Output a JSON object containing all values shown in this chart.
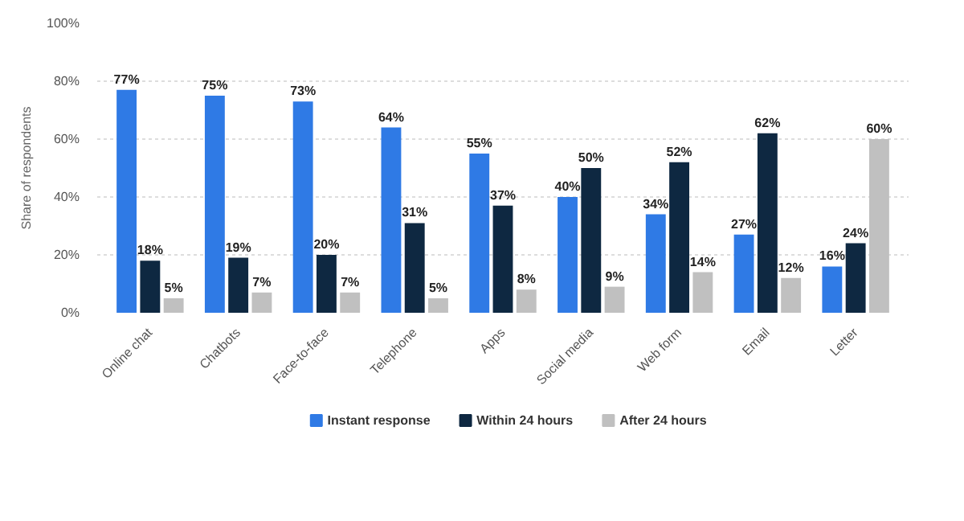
{
  "chart_data": {
    "type": "bar",
    "categories": [
      "Online chat",
      "Chatbots",
      "Face-to-face",
      "Telephone",
      "Apps",
      "Social media",
      "Web form",
      "Email",
      "Letter"
    ],
    "ylabel": "Share of respondents",
    "ylim": [
      0,
      100
    ],
    "yticks": [
      {
        "value": 0,
        "label": "0%"
      },
      {
        "value": 20,
        "label": "20%"
      },
      {
        "value": 40,
        "label": "40%"
      },
      {
        "value": 60,
        "label": "60%"
      },
      {
        "value": 80,
        "label": "80%"
      },
      {
        "value": 100,
        "label": "100%"
      }
    ],
    "grid": "y",
    "legend": "bottom",
    "series": [
      {
        "name": "Instant response",
        "color": "#2f7ae5",
        "values": [
          77,
          75,
          73,
          64,
          55,
          40,
          34,
          27,
          16
        ],
        "value_labels": [
          "77%",
          "75%",
          "73%",
          "64%",
          "55%",
          "40%",
          "34%",
          "27%",
          "16%"
        ]
      },
      {
        "name": "Within 24 hours",
        "color": "#0e2841",
        "values": [
          18,
          19,
          20,
          31,
          37,
          50,
          52,
          62,
          24
        ],
        "value_labels": [
          "18%",
          "19%",
          "20%",
          "31%",
          "37%",
          "50%",
          "52%",
          "62%",
          "24%"
        ]
      },
      {
        "name": "After 24 hours",
        "color": "#c0c0c0",
        "values": [
          5,
          7,
          7,
          5,
          8,
          9,
          14,
          12,
          60
        ],
        "value_labels": [
          "5%",
          "7%",
          "7%",
          "5%",
          "8%",
          "9%",
          "14%",
          "12%",
          "60%"
        ]
      }
    ]
  }
}
